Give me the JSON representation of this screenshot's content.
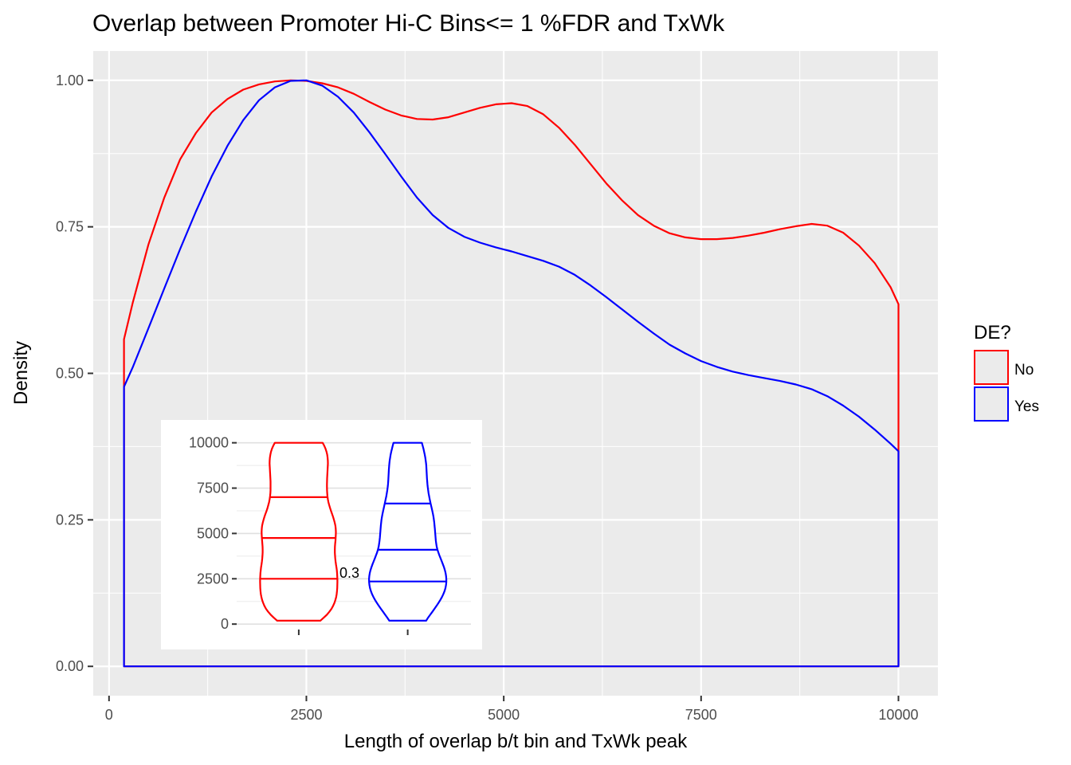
{
  "chart_data": [
    {
      "type": "line",
      "title": "Overlap between Promoter Hi-C Bins<= 1 %FDR and TxWk",
      "xlabel": "Length of overlap b/t bin and TxWk peak",
      "ylabel": "Density",
      "xlim": [
        -200,
        10500
      ],
      "ylim": [
        -0.05,
        1.05
      ],
      "x_ticks": [
        0,
        2500,
        5000,
        7500,
        10000
      ],
      "x_tick_labels": [
        "0",
        "2500",
        "5000",
        "7500",
        "10000"
      ],
      "y_ticks": [
        0,
        0.25,
        0.5,
        0.75,
        1.0
      ],
      "y_tick_labels": [
        "0.00",
        "0.25",
        "0.50",
        "0.75",
        "1.00"
      ],
      "grid": true,
      "legend": {
        "title": "DE?",
        "placement": "right",
        "entries": [
          {
            "label": "No",
            "color": "#ff0000"
          },
          {
            "label": "Yes",
            "color": "#0000ff"
          }
        ]
      },
      "series": [
        {
          "name": "No",
          "color": "#ff0000",
          "x": [
            190,
            300,
            500,
            700,
            900,
            1100,
            1300,
            1500,
            1700,
            1900,
            2100,
            2300,
            2500,
            2700,
            2900,
            3100,
            3300,
            3500,
            3700,
            3900,
            4100,
            4300,
            4500,
            4700,
            4900,
            5100,
            5300,
            5500,
            5700,
            5900,
            6100,
            6300,
            6500,
            6700,
            6900,
            7100,
            7300,
            7500,
            7700,
            7900,
            8100,
            8300,
            8500,
            8700,
            8900,
            9100,
            9300,
            9500,
            9700,
            9900,
            10000
          ],
          "y": [
            0.558,
            0.62,
            0.72,
            0.8,
            0.865,
            0.91,
            0.945,
            0.968,
            0.984,
            0.993,
            0.998,
            1.0,
            0.999,
            0.995,
            0.988,
            0.977,
            0.963,
            0.95,
            0.94,
            0.934,
            0.933,
            0.937,
            0.945,
            0.953,
            0.959,
            0.961,
            0.956,
            0.942,
            0.919,
            0.89,
            0.857,
            0.824,
            0.795,
            0.77,
            0.752,
            0.739,
            0.732,
            0.729,
            0.729,
            0.731,
            0.735,
            0.74,
            0.746,
            0.751,
            0.755,
            0.752,
            0.74,
            0.718,
            0.688,
            0.647,
            0.618
          ]
        },
        {
          "name": "Yes",
          "color": "#0000ff",
          "x": [
            190,
            300,
            500,
            700,
            900,
            1100,
            1300,
            1500,
            1700,
            1900,
            2100,
            2300,
            2500,
            2700,
            2900,
            3100,
            3300,
            3500,
            3700,
            3900,
            4100,
            4300,
            4500,
            4700,
            4900,
            5100,
            5300,
            5500,
            5700,
            5900,
            6100,
            6300,
            6500,
            6700,
            6900,
            7100,
            7300,
            7500,
            7700,
            7900,
            8100,
            8300,
            8500,
            8700,
            8900,
            9100,
            9300,
            9500,
            9700,
            9900,
            10000
          ],
          "y": [
            0.477,
            0.51,
            0.577,
            0.645,
            0.712,
            0.776,
            0.836,
            0.888,
            0.932,
            0.966,
            0.988,
            0.999,
            1.0,
            0.991,
            0.972,
            0.945,
            0.911,
            0.874,
            0.836,
            0.8,
            0.77,
            0.748,
            0.733,
            0.723,
            0.715,
            0.708,
            0.7,
            0.692,
            0.682,
            0.668,
            0.65,
            0.63,
            0.609,
            0.588,
            0.568,
            0.549,
            0.534,
            0.521,
            0.511,
            0.503,
            0.497,
            0.492,
            0.487,
            0.481,
            0.473,
            0.461,
            0.445,
            0.426,
            0.404,
            0.38,
            0.367
          ]
        }
      ]
    },
    {
      "type": "violin",
      "ylim": [
        -300,
        10600
      ],
      "y_ticks": [
        0,
        2500,
        5000,
        7500,
        10000
      ],
      "y_tick_labels": [
        "0",
        "2500",
        "5000",
        "7500",
        "10000"
      ],
      "grid": true,
      "annotation": "0.3",
      "series": [
        {
          "name": "No",
          "color": "#ff0000",
          "quantiles": [
            2500,
            4750,
            7000
          ],
          "min": 190,
          "max": 10000
        },
        {
          "name": "Yes",
          "color": "#0000ff",
          "quantiles": [
            2350,
            4100,
            6650
          ],
          "min": 190,
          "max": 10000
        }
      ]
    }
  ]
}
